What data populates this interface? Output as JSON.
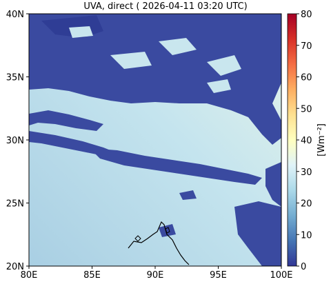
{
  "title": "UVA, direct ( 2026-04-11 03:20 UTC)",
  "map": {
    "x_ticks": [
      "80E",
      "85E",
      "90E",
      "95E",
      "100E"
    ],
    "y_ticks": [
      "20N",
      "25N",
      "30N",
      "35N",
      "40N"
    ],
    "lon_range": [
      80,
      100
    ],
    "lat_range": [
      20,
      40
    ],
    "cloud_color": "#3a4aa0",
    "clear_sky_color": "#b9dcea",
    "coastline_color": "#000000"
  },
  "colorbar": {
    "label": "[Wm⁻²]",
    "ticks": [
      "0",
      "10",
      "20",
      "30",
      "40",
      "50",
      "60",
      "70",
      "80"
    ],
    "range": [
      0,
      80
    ],
    "colormap": "RdYlBu_r"
  }
}
